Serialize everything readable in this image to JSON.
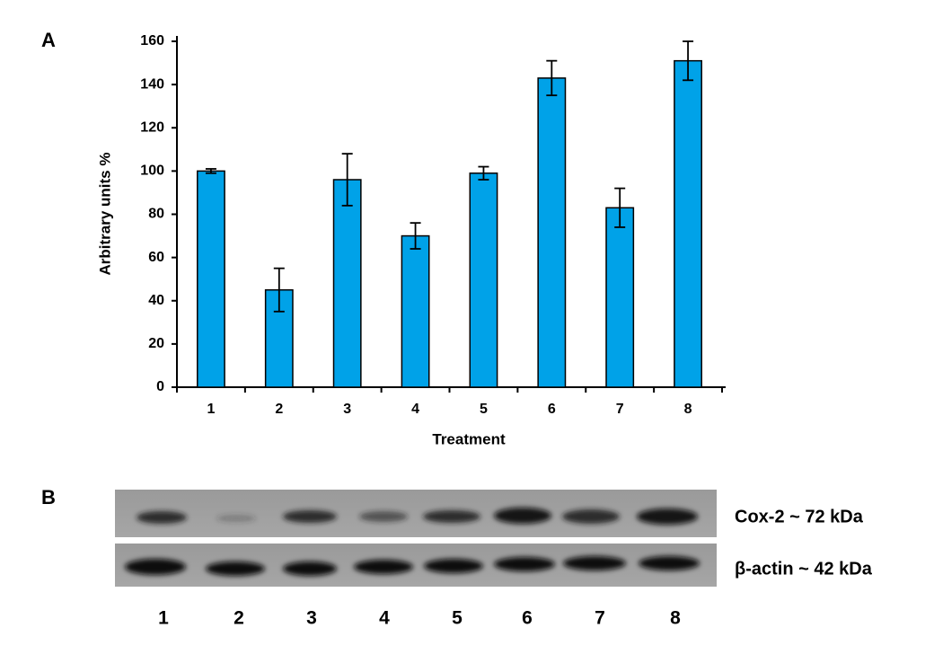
{
  "panels": [
    "A",
    "B"
  ],
  "chart_data": {
    "type": "bar",
    "x_label": "Treatment",
    "y_label": "Arbitrary units %",
    "categories": [
      "1",
      "2",
      "3",
      "4",
      "5",
      "6",
      "7",
      "8"
    ],
    "values": [
      100,
      45,
      96,
      70,
      99,
      143,
      83,
      151
    ],
    "errors": [
      1,
      10,
      12,
      6,
      3,
      8,
      9,
      9
    ],
    "color": "#00a2e8",
    "ylim": [
      0,
      160
    ],
    "yticks": [
      0,
      20,
      40,
      60,
      80,
      100,
      120,
      140,
      160
    ],
    "grid": false
  },
  "blot": {
    "rows": [
      "Cox-2 ~ 72 kDa",
      "β-actin ~ 42 kDa"
    ],
    "lanes": [
      "1",
      "2",
      "3",
      "4",
      "5",
      "6",
      "7",
      "8"
    ]
  }
}
